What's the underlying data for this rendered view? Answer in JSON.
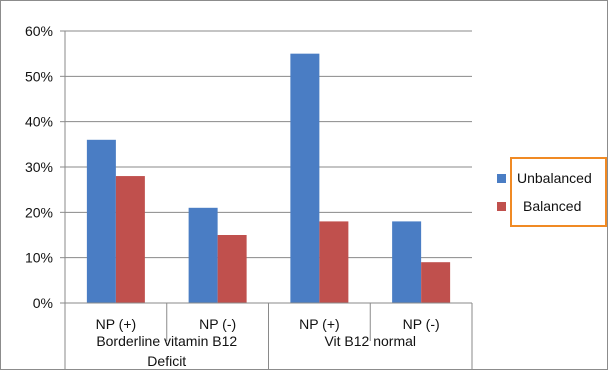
{
  "chart_data": {
    "type": "bar",
    "categories": [
      "NP (+)",
      "NP (-)",
      "NP (+)",
      "NP (-)"
    ],
    "groups": [
      {
        "label": "Borderline vitamin B12 Deficit",
        "lines": [
          "Borderline vitamin B12",
          "Deficit"
        ],
        "span": [
          0,
          1
        ]
      },
      {
        "label": "Vit B12 normal",
        "lines": [
          "Vit B12 normal"
        ],
        "span": [
          2,
          3
        ]
      }
    ],
    "series": [
      {
        "name": "Unbalanced",
        "color": "#4a7dc4",
        "values": [
          36,
          21,
          55,
          18
        ]
      },
      {
        "name": "Balanced",
        "color": "#c0504d",
        "values": [
          28,
          15,
          18,
          9
        ]
      }
    ],
    "ylim": [
      0,
      60
    ],
    "yticks": [
      0,
      10,
      20,
      30,
      40,
      50,
      60
    ],
    "ytick_labels": [
      "0%",
      "10%",
      "20%",
      "30%",
      "40%",
      "50%",
      "60%"
    ],
    "grid": true,
    "legend_position": "right",
    "legend_highlight_color": "#f08a24"
  }
}
